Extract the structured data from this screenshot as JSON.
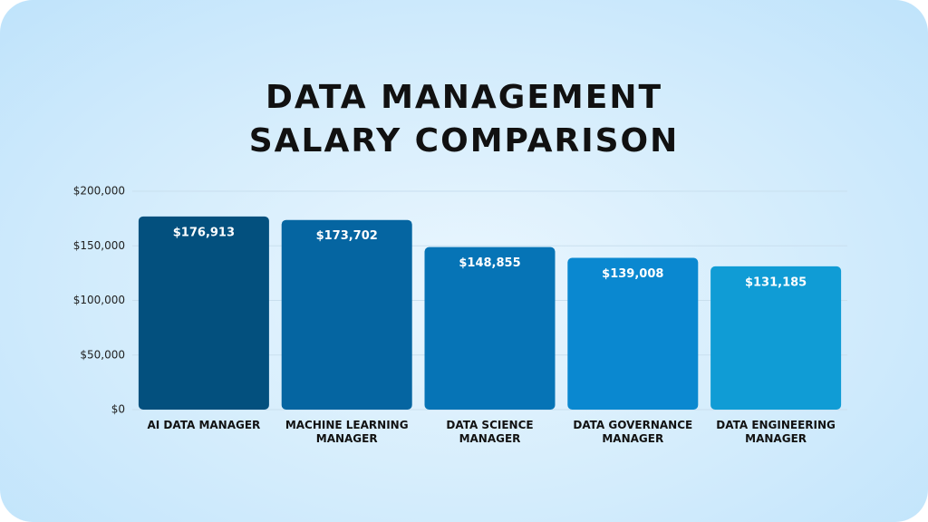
{
  "chart_data": {
    "type": "bar",
    "title": "DATA MANAGEMENT\nSALARY COMPARISON",
    "categories": [
      "AI DATA MANAGER",
      "MACHINE LEARNING MANAGER",
      "DATA SCIENCE MANAGER",
      "DATA GOVERNANCE MANAGER",
      "DATA ENGINEERING MANAGER"
    ],
    "values": [
      176913,
      173702,
      148855,
      139008,
      131185
    ],
    "value_labels": [
      "$176,913",
      "$173,702",
      "$148,855",
      "$139,008",
      "$131,185"
    ],
    "colors": [
      "#03507e",
      "#0565a1",
      "#0674b6",
      "#0a88d0",
      "#109cd5"
    ],
    "ylim": [
      0,
      200000
    ],
    "yticks": [
      {
        "value": 0,
        "label": "$0"
      },
      {
        "value": 50000,
        "label": "$50,000"
      },
      {
        "value": 100000,
        "label": "$100,000"
      },
      {
        "value": 150000,
        "label": "$150,000"
      },
      {
        "value": 200000,
        "label": "$200,000"
      }
    ],
    "grid": true
  }
}
